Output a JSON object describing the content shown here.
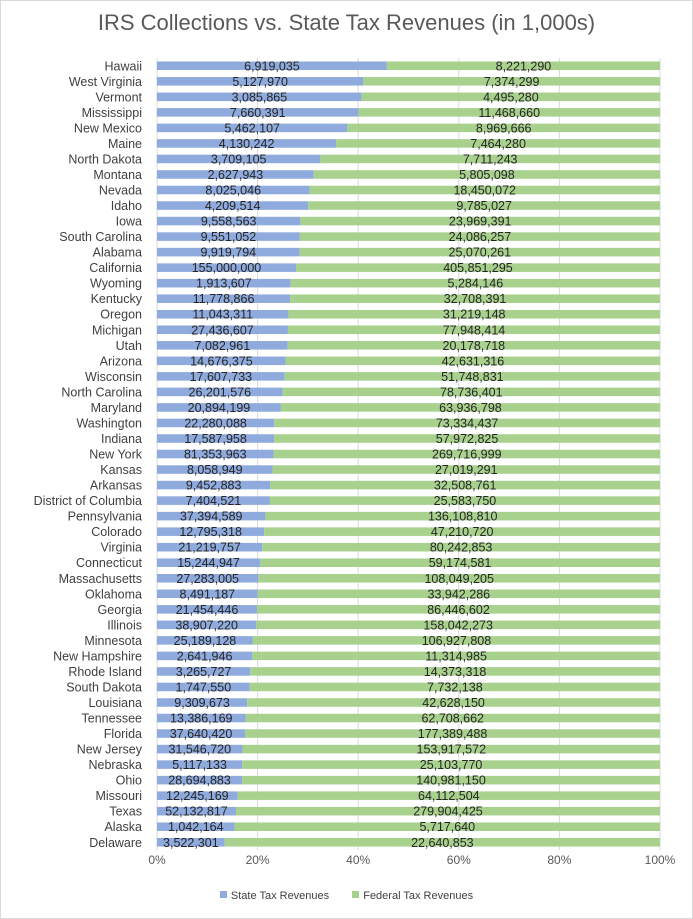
{
  "chart_data": {
    "type": "bar",
    "orientation": "horizontal",
    "stacked": "percent",
    "title": "IRS Collections vs. State Tax Revenues (in 1,000s)",
    "xlim": [
      0,
      100
    ],
    "x_ticks": [
      "0%",
      "20%",
      "40%",
      "60%",
      "80%",
      "100%"
    ],
    "gridlines": "vertical",
    "legend_position": "bottom",
    "categories": [
      "Hawaii",
      "West Virginia",
      "Vermont",
      "Mississippi",
      "New Mexico",
      "Maine",
      "North Dakota",
      "Montana",
      "Nevada",
      "Idaho",
      "Iowa",
      "South Carolina",
      "Alabama",
      "California",
      "Wyoming",
      "Kentucky",
      "Oregon",
      "Michigan",
      "Utah",
      "Arizona",
      "Wisconsin",
      "North Carolina",
      "Maryland",
      "Washington",
      "Indiana",
      "New York",
      "Kansas",
      "Arkansas",
      "District of Columbia",
      "Pennsylvania",
      "Colorado",
      "Virginia",
      "Connecticut",
      "Massachusetts",
      "Oklahoma",
      "Georgia",
      "Illinois",
      "Minnesota",
      "New Hampshire",
      "Rhode Island",
      "South Dakota",
      "Louisiana",
      "Tennessee",
      "Florida",
      "New Jersey",
      "Nebraska",
      "Ohio",
      "Missouri",
      "Texas",
      "Alaska",
      "Delaware"
    ],
    "series": [
      {
        "name": "State Tax Revenues",
        "color": "#8faadc",
        "values": [
          6919035,
          5127970,
          3085865,
          7660391,
          5462107,
          4130242,
          3709105,
          2627943,
          8025046,
          4209514,
          9558563,
          9551052,
          9919794,
          155000000,
          1913607,
          11778866,
          11043311,
          27436607,
          7082961,
          14676375,
          17607733,
          26201576,
          20894199,
          22280088,
          17587958,
          81353963,
          8058949,
          9452883,
          7404521,
          37394589,
          12795318,
          21219757,
          15244947,
          27283005,
          8491187,
          21454446,
          38907220,
          25189128,
          2641946,
          3265727,
          1747550,
          9309673,
          13386169,
          37640420,
          31546720,
          5117133,
          28694883,
          12245169,
          52132817,
          1042164,
          3522301
        ],
        "labels": [
          "6,919,035",
          "5,127,970",
          "3,085,865",
          "7,660,391",
          "5,462,107",
          "4,130,242",
          "3,709,105",
          "2,627,943",
          "8,025,046",
          "4,209,514",
          "9,558,563",
          "9,551,052",
          "9,919,794",
          "155,000,000",
          "1,913,607",
          "11,778,866",
          "11,043,311",
          "27,436,607",
          "7,082,961",
          "14,676,375",
          "17,607,733",
          "26,201,576",
          "20,894,199",
          "22,280,088",
          "17,587,958",
          "81,353,963",
          "8,058,949",
          "9,452,883",
          "7,404,521",
          "37,394,589",
          "12,795,318",
          "21,219,757",
          "15,244,947",
          "27,283,005",
          "8,491,187",
          "21,454,446",
          "38,907,220",
          "25,189,128",
          "2,641,946",
          "3,265,727",
          "1,747,550",
          "9,309,673",
          "13,386,169",
          "37,640,420",
          "31,546,720",
          "5,117,133",
          "28,694,883",
          "12,245,169",
          "52,132,817",
          "1,042,164",
          "3,522,301"
        ]
      },
      {
        "name": "Federal Tax Revenues",
        "color": "#a9d18e",
        "values": [
          8221290,
          7374299,
          4495280,
          11468660,
          8969666,
          7464280,
          7711243,
          5805098,
          18450072,
          9785027,
          23969391,
          24086257,
          25070261,
          405851295,
          5284146,
          32708391,
          31219148,
          77948414,
          20178718,
          42631316,
          51748831,
          78736401,
          63936798,
          73334437,
          57972825,
          269716999,
          27019291,
          32508761,
          25583750,
          136108810,
          47210720,
          80242853,
          59174581,
          108049205,
          33942286,
          86446602,
          158042273,
          106927808,
          11314985,
          14373318,
          7732138,
          42628150,
          62708662,
          177389488,
          153917572,
          25103770,
          140981150,
          64112504,
          279904425,
          5717640,
          22640853
        ],
        "labels": [
          "8,221,290",
          "7,374,299",
          "4,495,280",
          "11,468,660",
          "8,969,666",
          "7,464,280",
          "7,711,243",
          "5,805,098",
          "18,450,072",
          "9,785,027",
          "23,969,391",
          "24,086,257",
          "25,070,261",
          "405,851,295",
          "5,284,146",
          "32,708,391",
          "31,219,148",
          "77,948,414",
          "20,178,718",
          "42,631,316",
          "51,748,831",
          "78,736,401",
          "63,936,798",
          "73,334,437",
          "57,972,825",
          "269,716,999",
          "27,019,291",
          "32,508,761",
          "25,583,750",
          "136,108,810",
          "47,210,720",
          "80,242,853",
          "59,174,581",
          "108,049,205",
          "33,942,286",
          "86,446,602",
          "158,042,273",
          "106,927,808",
          "11,314,985",
          "14,373,318",
          "7,732,138",
          "42,628,150",
          "62,708,662",
          "177,389,488",
          "153,917,572",
          "25,103,770",
          "140,981,150",
          "64,112,504",
          "279,904,425",
          "5,717,640",
          "22,640,853"
        ]
      }
    ]
  }
}
